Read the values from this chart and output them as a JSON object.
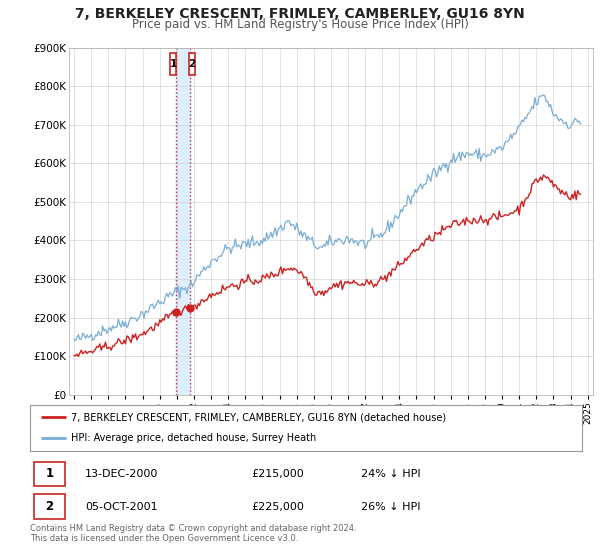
{
  "title": "7, BERKELEY CRESCENT, FRIMLEY, CAMBERLEY, GU16 8YN",
  "subtitle": "Price paid vs. HM Land Registry's House Price Index (HPI)",
  "ylim": [
    0,
    900000
  ],
  "yticks": [
    0,
    100000,
    200000,
    300000,
    400000,
    500000,
    600000,
    700000,
    800000,
    900000
  ],
  "ytick_labels": [
    "£0",
    "£100K",
    "£200K",
    "£300K",
    "£400K",
    "£500K",
    "£600K",
    "£700K",
    "£800K",
    "£900K"
  ],
  "xlim_start": 1994.7,
  "xlim_end": 2025.3,
  "xtick_years": [
    1995,
    1996,
    1997,
    1998,
    1999,
    2000,
    2001,
    2002,
    2003,
    2004,
    2005,
    2006,
    2007,
    2008,
    2009,
    2010,
    2011,
    2012,
    2013,
    2014,
    2015,
    2016,
    2017,
    2018,
    2019,
    2020,
    2021,
    2022,
    2023,
    2024,
    2025
  ],
  "hpi_color": "#7aadd4",
  "price_color": "#cc2222",
  "vline_color": "#cc3333",
  "purchase1_date_x": 2000.96,
  "purchase1_price": 215000,
  "purchase2_date_x": 2001.75,
  "purchase2_price": 225000,
  "shade_color": "#ddeeff",
  "legend_label_price": "7, BERKELEY CRESCENT, FRIMLEY, CAMBERLEY, GU16 8YN (detached house)",
  "legend_label_hpi": "HPI: Average price, detached house, Surrey Heath",
  "transaction1_date": "13-DEC-2000",
  "transaction1_price": "£215,000",
  "transaction1_hpi": "24% ↓ HPI",
  "transaction2_date": "05-OCT-2001",
  "transaction2_price": "£225,000",
  "transaction2_hpi": "26% ↓ HPI",
  "footnote": "Contains HM Land Registry data © Crown copyright and database right 2024.\nThis data is licensed under the Open Government Licence v3.0.",
  "background_color": "#ffffff",
  "grid_color": "#cccccc"
}
